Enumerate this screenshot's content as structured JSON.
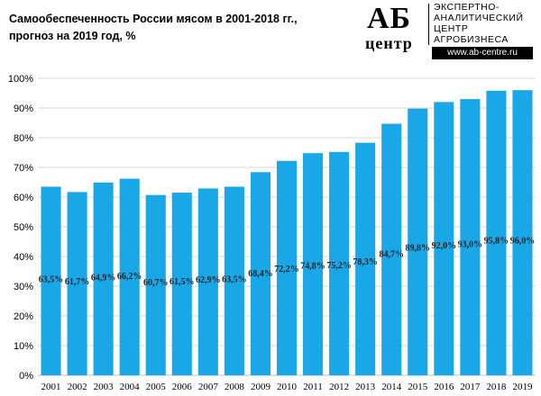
{
  "header": {
    "title_line1": "Самообеспеченность  России мясом в 2001-2018 гг.,",
    "title_line2": "прогноз  на 2019 год, %"
  },
  "logo": {
    "ab": "АБ",
    "center": "центр",
    "line1": "ЭКСПЕРТНО-",
    "line2": "АНАЛИТИЧЕСКИЙ",
    "line3": "ЦЕНТР",
    "line4": "АГРОБИЗНЕСА",
    "url": "www.ab-centre.ru"
  },
  "colors": {
    "bar": "#1aa7e8",
    "grid": "#d9d9d9",
    "axis": "#bfbfbf"
  },
  "chart_data": {
    "type": "bar",
    "title": "Самообеспеченность  России мясом в 2001-2018 гг., прогноз  на 2019 год, %",
    "categories": [
      "2001",
      "2002",
      "2003",
      "2004",
      "2005",
      "2006",
      "2007",
      "2008",
      "2009",
      "2010",
      "2011",
      "2012",
      "2013",
      "2014",
      "2015",
      "2016",
      "2017",
      "2018",
      "2019"
    ],
    "values": [
      63.5,
      61.7,
      64.9,
      66.2,
      60.7,
      61.5,
      62.9,
      63.5,
      68.4,
      72.2,
      74.8,
      75.2,
      78.3,
      84.7,
      89.8,
      92.0,
      93.0,
      95.8,
      96.0
    ],
    "data_labels": [
      "63,5%",
      "61,7%",
      "64,9%",
      "66,2%",
      "60,7%",
      "61,5%",
      "62,9%",
      "63,5%",
      "68,4%",
      "72,2%",
      "74,8%",
      "75,2%",
      "78,3%",
      "84,7%",
      "89,8%",
      "92,0%",
      "93,0%",
      "95,8%",
      "96,0%"
    ],
    "ylim": [
      0,
      100
    ],
    "yticks": [
      0,
      10,
      20,
      30,
      40,
      50,
      60,
      70,
      80,
      90,
      100
    ],
    "ytick_labels": [
      "0%",
      "10%",
      "20%",
      "30%",
      "40%",
      "50%",
      "60%",
      "70%",
      "80%",
      "90%",
      "100%"
    ],
    "grid": true,
    "legend": "none"
  }
}
